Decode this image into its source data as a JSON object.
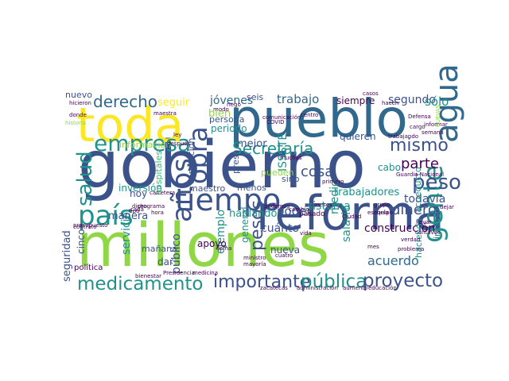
{
  "palette": {
    "dark_purple": "#440154",
    "indigo": "#3b528b",
    "blue": "#31688e",
    "teal": "#21918c",
    "green": "#35b779",
    "lime": "#8fd744",
    "yellow": "#fde725"
  },
  "words": [
    {
      "text": "millones",
      "color": "lime"
    },
    {
      "text": "gobierno",
      "color": "indigo"
    },
    {
      "text": "pueblo",
      "color": "blue"
    },
    {
      "text": "toda",
      "color": "yellow"
    },
    {
      "text": "reforma",
      "color": "indigo"
    },
    {
      "text": "tiempo",
      "color": "indigo"
    },
    {
      "text": "país",
      "color": "teal"
    },
    {
      "text": "agua",
      "color": "blue"
    },
    {
      "text": "gente",
      "color": "teal"
    },
    {
      "text": "empresa",
      "color": "teal"
    },
    {
      "text": "salud",
      "color": "teal"
    },
    {
      "text": "obra",
      "color": "indigo"
    },
    {
      "text": "años",
      "color": "indigo"
    },
    {
      "text": "derecho",
      "color": "blue"
    },
    {
      "text": "peso",
      "color": "indigo"
    },
    {
      "text": "Secretaría",
      "color": "teal"
    },
    {
      "text": "mismo",
      "color": "indigo"
    },
    {
      "text": "medicamento",
      "color": "teal"
    },
    {
      "text": "importante",
      "color": "indigo"
    },
    {
      "text": "pública",
      "color": "teal"
    },
    {
      "text": "proyecto",
      "color": "indigo"
    },
    {
      "text": "dinero",
      "color": "indigo"
    },
    {
      "text": "parte",
      "color": "dark_purple"
    },
    {
      "text": "trabajo",
      "color": "blue"
    },
    {
      "text": "jóvenes",
      "color": "blue"
    },
    {
      "text": "seguir",
      "color": "yellow"
    },
    {
      "text": "segundo",
      "color": "indigo"
    },
    {
      "text": "sólo",
      "color": "teal"
    },
    {
      "text": "todavía",
      "color": "indigo"
    },
    {
      "text": "mejor",
      "color": "indigo"
    },
    {
      "text": "bien",
      "color": "lime"
    },
    {
      "text": "ISSSTE",
      "color": "teal"
    },
    {
      "text": "cosa",
      "color": "indigo"
    },
    {
      "text": "poder",
      "color": "indigo"
    },
    {
      "text": "trabajadores",
      "color": "teal"
    },
    {
      "text": "sistema",
      "color": "teal"
    },
    {
      "text": "construcción",
      "color": "dark_purple"
    },
    {
      "text": "salario",
      "color": "teal"
    },
    {
      "text": "cuánto",
      "color": "indigo"
    },
    {
      "text": "pesos",
      "color": "indigo"
    },
    {
      "text": "ejemplo",
      "color": "teal"
    },
    {
      "text": "hablando",
      "color": "teal"
    },
    {
      "text": "acuerdo",
      "color": "blue"
    },
    {
      "text": "seguridad",
      "color": "indigo"
    },
    {
      "text": "cinco",
      "color": "indigo"
    },
    {
      "text": "servicio",
      "color": "teal"
    },
    {
      "text": "manera",
      "color": "indigo"
    },
    {
      "text": "mañana",
      "color": "indigo"
    },
    {
      "text": "apoyo",
      "color": "dark_purple"
    },
    {
      "text": "público",
      "color": "indigo"
    },
    {
      "text": "inversión",
      "color": "teal"
    },
    {
      "text": "hoy",
      "color": "indigo"
    },
    {
      "text": "dar",
      "color": "indigo"
    },
    {
      "text": "medio",
      "color": "teal"
    },
    {
      "text": "quieren",
      "color": "indigo"
    },
    {
      "text": "siempre",
      "color": "dark_purple"
    },
    {
      "text": "nuevo",
      "color": "indigo"
    },
    {
      "text": "persona",
      "color": "indigo"
    },
    {
      "text": "periodo",
      "color": "teal"
    },
    {
      "text": "hospitales",
      "color": "green"
    },
    {
      "text": "información",
      "color": "lime"
    },
    {
      "text": "corrupción",
      "color": "indigo"
    },
    {
      "text": "maestro",
      "color": "indigo"
    },
    {
      "text": "menos",
      "color": "indigo"
    },
    {
      "text": "general",
      "color": "teal"
    },
    {
      "text": "nueva",
      "color": "indigo"
    },
    {
      "text": "presa",
      "color": "indigo"
    },
    {
      "text": "pueden",
      "color": "lime"
    },
    {
      "text": "sino",
      "color": "indigo"
    },
    {
      "text": "cabo",
      "color": "teal"
    },
    {
      "text": "acueducto",
      "color": "teal"
    },
    {
      "text": "haciendo",
      "color": "teal"
    },
    {
      "text": "incluso",
      "color": "teal"
    },
    {
      "text": "seis",
      "color": "indigo"
    },
    {
      "text": "pasado",
      "color": "dark_purple"
    },
    {
      "text": "política",
      "color": "dark_purple"
    },
    {
      "text": "contrato",
      "color": "dark_purple"
    },
    {
      "text": "Guardia Nacional",
      "color": "dark_purple"
    },
    {
      "text": "bienestar",
      "color": "dark_purple"
    },
    {
      "text": "Presidencia",
      "color": "dark_purple"
    },
    {
      "text": "medicina",
      "color": "dark_purple"
    },
    {
      "text": "zacatecas",
      "color": "dark_purple"
    },
    {
      "text": "administración",
      "color": "dark_purple"
    },
    {
      "text": "aumento",
      "color": "dark_purple"
    },
    {
      "text": "educación",
      "color": "dark_purple"
    },
    {
      "text": "comunicación",
      "color": "dark_purple"
    },
    {
      "text": "llevar",
      "color": "dark_purple"
    },
    {
      "text": "centavos",
      "color": "dark_purple"
    },
    {
      "text": "ministro",
      "color": "dark_purple"
    },
    {
      "text": "mayoría",
      "color": "dark_purple"
    },
    {
      "text": "escuela",
      "color": "dark_purple"
    },
    {
      "text": "grupo",
      "color": "dark_purple"
    },
    {
      "text": "equipo",
      "color": "dark_purple"
    },
    {
      "text": "dejar",
      "color": "dark_purple"
    },
    {
      "text": "Ciudad",
      "color": "dark_purple"
    },
    {
      "text": "mes",
      "color": "dark_purple"
    },
    {
      "text": "vida",
      "color": "dark_purple"
    },
    {
      "text": "casos",
      "color": "dark_purple"
    },
    {
      "text": "hacen",
      "color": "dark_purple"
    },
    {
      "text": "hicieron",
      "color": "dark_purple"
    },
    {
      "text": "donde",
      "color": "dark_purple"
    },
    {
      "text": "historia",
      "color": "lime"
    },
    {
      "text": "presupuesto",
      "color": "dark_purple"
    },
    {
      "text": "carretera",
      "color": "dark_purple"
    },
    {
      "text": "dicho",
      "color": "dark_purple"
    },
    {
      "text": "cada",
      "color": "dark_purple"
    },
    {
      "text": "hora",
      "color": "dark_purple"
    },
    {
      "text": "tipo",
      "color": "dark_purple"
    },
    {
      "text": "programa",
      "color": "dark_purple"
    },
    {
      "text": "podemos",
      "color": "dark_purple"
    },
    {
      "text": "cambio",
      "color": "dark_purple"
    },
    {
      "text": "después",
      "color": "dark_purple"
    },
    {
      "text": "ley",
      "color": "dark_purple"
    },
    {
      "text": "maestra",
      "color": "dark_purple"
    },
    {
      "text": "semana",
      "color": "dark_purple"
    },
    {
      "text": "informar",
      "color": "dark_purple"
    },
    {
      "text": "Defensa",
      "color": "dark_purple"
    },
    {
      "text": "problema",
      "color": "dark_purple"
    },
    {
      "text": "verdad",
      "color": "dark_purple"
    },
    {
      "text": "muchas",
      "color": "dark_purple"
    },
    {
      "text": "primero",
      "color": "dark_purple"
    },
    {
      "text": "CUEVAS",
      "color": "lime"
    },
    {
      "text": "trabajando",
      "color": "dark_purple"
    },
    {
      "text": "cuatro",
      "color": "dark_purple"
    },
    {
      "text": "meses",
      "color": "dark_purple"
    },
    {
      "text": "llama",
      "color": "dark_purple"
    },
    {
      "text": "COVID",
      "color": "dark_purple"
    },
    {
      "text": "riego",
      "color": "dark_purple"
    },
    {
      "text": "modo",
      "color": "dark_purple"
    },
    {
      "text": "centro",
      "color": "dark_purple"
    },
    {
      "text": "cargo",
      "color": "dark_purple"
    },
    {
      "text": "radio",
      "color": "dark_purple"
    }
  ]
}
